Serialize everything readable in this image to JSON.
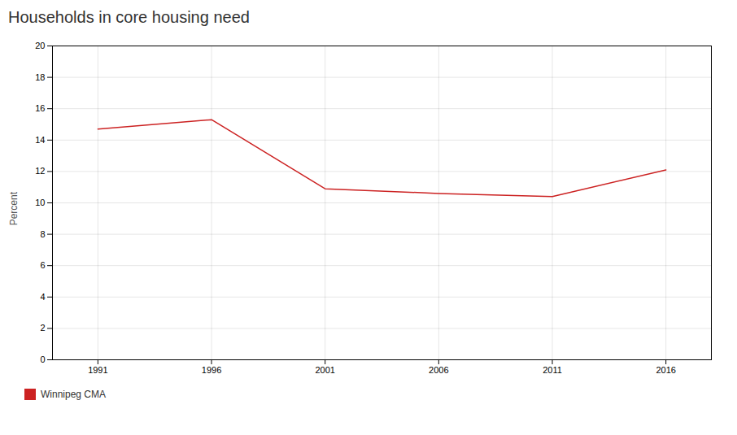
{
  "chart_data": {
    "type": "line",
    "title": "Households in core housing need",
    "ylabel": "Percent",
    "x": [
      1991,
      1996,
      2001,
      2006,
      2011,
      2016
    ],
    "series": [
      {
        "name": "Winnipeg CMA",
        "color": "#cc2222",
        "values": [
          14.7,
          15.3,
          10.9,
          10.6,
          10.4,
          12.1
        ]
      }
    ],
    "xlim": [
      1989,
      2018
    ],
    "xticks": [
      1991,
      1996,
      2001,
      2006,
      2011,
      2016
    ],
    "ylim": [
      0,
      20
    ],
    "yticks": [
      0,
      2,
      4,
      6,
      8,
      10,
      12,
      14,
      16,
      18,
      20
    ],
    "grid": true,
    "legend": "bottom left"
  }
}
